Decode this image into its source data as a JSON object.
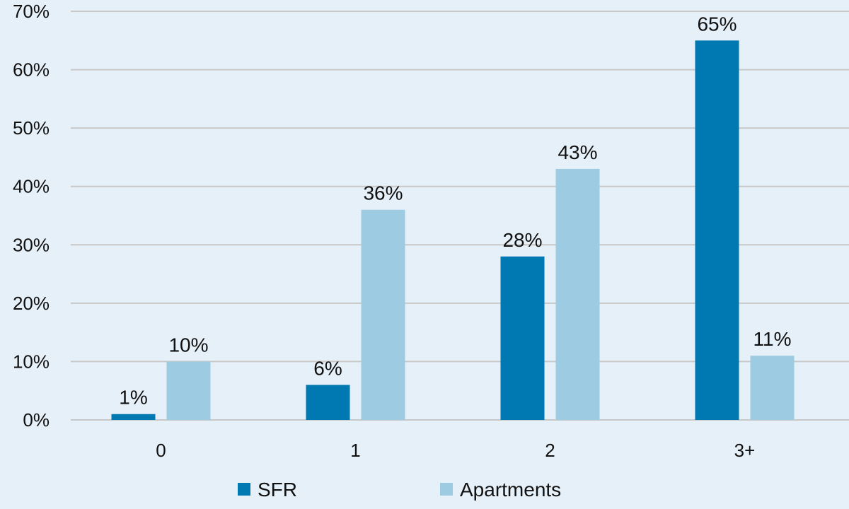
{
  "chart_data": {
    "type": "bar",
    "title": "",
    "xlabel": "",
    "ylabel": "",
    "categories": [
      "0",
      "1",
      "2",
      "3+"
    ],
    "series": [
      {
        "name": "SFR",
        "values": [
          1,
          6,
          28,
          65
        ],
        "labels": [
          "1%",
          "6%",
          "28%",
          "65%"
        ],
        "color": "#0079b3"
      },
      {
        "name": "Apartments",
        "values": [
          10,
          36,
          43,
          11
        ],
        "labels": [
          "10%",
          "36%",
          "43%",
          "11%"
        ],
        "color": "#9dcce2"
      }
    ],
    "ylim": [
      0,
      70
    ],
    "yticks": [
      0,
      10,
      20,
      30,
      40,
      50,
      60,
      70
    ],
    "ytick_labels": [
      "0%",
      "10%",
      "20%",
      "30%",
      "40%",
      "50%",
      "60%",
      "70%"
    ],
    "grid": true,
    "gridline_color": "#c8c8c8",
    "legend_position": "bottom"
  }
}
